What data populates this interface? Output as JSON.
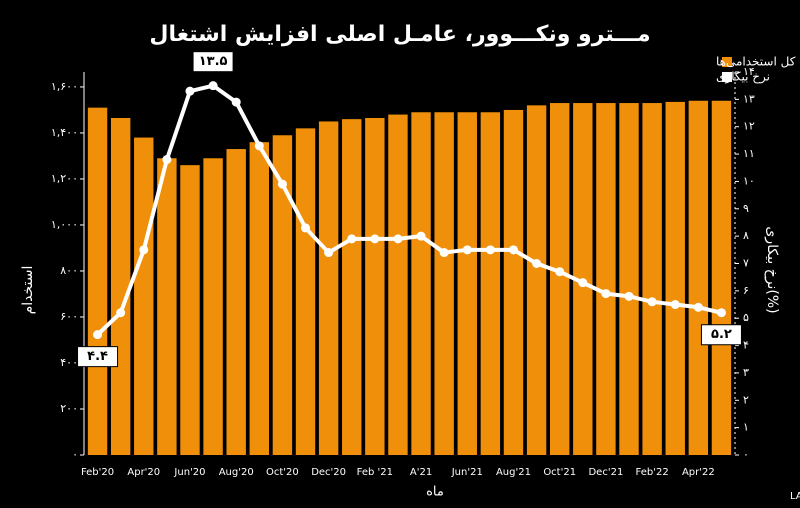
{
  "chart_data": {
    "type": "bar-line",
    "title": "مـــترو ونکـــوور، عامـل اصلی افزایش اشتغال",
    "x_label": "ماه",
    "y_label": "استخدام",
    "y2_label": "نرخ بیکاری(%)",
    "source": "منبع: LABOUR FORCE SURVEY, STATISTICS CANADA",
    "legend": "top-right",
    "categories": [
      "Feb'20",
      null,
      "Apr'20",
      null,
      "Jun'20",
      null,
      "Aug'20",
      null,
      "Oct'20",
      null,
      "Dec'20",
      null,
      "Feb '21",
      null,
      "A'21",
      null,
      "Jun'21",
      null,
      "Aug'21",
      null,
      "Oct'21",
      null,
      "Dec'21",
      null,
      "Feb'22",
      null,
      "Apr'22",
      null
    ],
    "series": [
      {
        "name": "کل استخدامی‌ها",
        "color": "#f0900a",
        "kind": "bar",
        "values": [
          1510,
          1465,
          1380,
          1290,
          1260,
          1290,
          1330,
          1360,
          1390,
          1420,
          1450,
          1460,
          1465,
          1480,
          1490,
          1490,
          1490,
          1490,
          1500,
          1520,
          1530,
          1530,
          1530,
          1530,
          1530,
          1535,
          1540,
          1540
        ]
      },
      {
        "name": "نرخ بیکاری",
        "color": "#ffffff",
        "kind": "line",
        "axis": "y2",
        "values": [
          4.4,
          5.2,
          7.5,
          10.8,
          13.3,
          13.5,
          12.9,
          11.3,
          9.9,
          8.3,
          7.4,
          7.9,
          7.9,
          7.9,
          8.0,
          7.4,
          7.5,
          7.5,
          7.5,
          7.0,
          6.7,
          6.3,
          5.9,
          5.8,
          5.6,
          5.5,
          5.4,
          5.2
        ],
        "value_labels": [
          "۴.۴",
          null,
          null,
          null,
          null,
          "۱۳.۵",
          null,
          null,
          null,
          null,
          null,
          null,
          null,
          null,
          null,
          null,
          null,
          null,
          null,
          null,
          null,
          null,
          null,
          null,
          null,
          null,
          null,
          "۵.۲"
        ]
      }
    ],
    "ylim": [
      0,
      1665
    ],
    "yticks": [
      {
        "value": 0,
        "label": "۰"
      },
      {
        "value": 200,
        "label": "۲۰۰"
      },
      {
        "value": 400,
        "label": "۴۰۰"
      },
      {
        "value": 600,
        "label": "۶۰۰"
      },
      {
        "value": 800,
        "label": "۸۰۰"
      },
      {
        "value": 1000,
        "label": "۱,۰۰۰"
      },
      {
        "value": 1200,
        "label": "۱,۲۰۰"
      },
      {
        "value": 1400,
        "label": "۱,۴۰۰"
      },
      {
        "value": 1600,
        "label": "۱,۶۰۰"
      }
    ],
    "y2lim": [
      0,
      14
    ],
    "y2ticks": [
      {
        "value": 0,
        "label": "۰"
      },
      {
        "value": 1,
        "label": "۱"
      },
      {
        "value": 2,
        "label": "۲"
      },
      {
        "value": 3,
        "label": "۳"
      },
      {
        "value": 4,
        "label": "۴"
      },
      {
        "value": 5,
        "label": "۵"
      },
      {
        "value": 6,
        "label": "۶"
      },
      {
        "value": 7,
        "label": "۷"
      },
      {
        "value": 8,
        "label": "۸"
      },
      {
        "value": 9,
        "label": "۹"
      },
      {
        "value": 10,
        "label": "۱۰"
      },
      {
        "value": 11,
        "label": "۱۱"
      },
      {
        "value": 12,
        "label": "۱۲"
      },
      {
        "value": 13,
        "label": "۱۳"
      },
      {
        "value": 14,
        "label": "۱۴"
      }
    ]
  }
}
